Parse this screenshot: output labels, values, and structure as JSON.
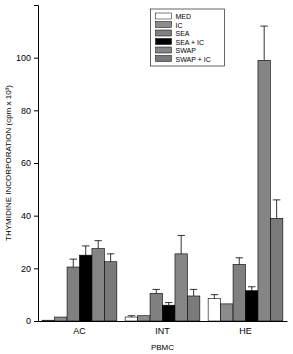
{
  "chart_data": {
    "type": "bar",
    "x_label": "PBMC",
    "y_label": "THYMIDINE INCORPORATION (cpm x 10³)",
    "categories": [
      "AC",
      "INT",
      "HE"
    ],
    "series": [
      {
        "name": "MED",
        "color": "#ffffff",
        "values": [
          0.3,
          1.5,
          8.5
        ],
        "errors": [
          0,
          0.5,
          1.5
        ]
      },
      {
        "name": "IC",
        "color": "#8c8c8c",
        "values": [
          1.5,
          2,
          6.5
        ],
        "errors": [
          0,
          0,
          0
        ]
      },
      {
        "name": "SEA",
        "color": "#808080",
        "values": [
          20.5,
          10.5,
          21.5
        ],
        "errors": [
          3,
          1.5,
          2.5
        ]
      },
      {
        "name": "SEA + IC",
        "color": "#000000",
        "values": [
          25,
          6,
          11.5
        ],
        "errors": [
          3.5,
          1,
          1.5
        ]
      },
      {
        "name": "SWAP",
        "color": "#858585",
        "values": [
          27.5,
          25.5,
          99
        ],
        "errors": [
          3,
          7,
          13
        ]
      },
      {
        "name": "SWAP + IC",
        "color": "#7a7a7a",
        "values": [
          22.5,
          9.5,
          39
        ],
        "errors": [
          3,
          2.5,
          7
        ]
      }
    ],
    "ylim": [
      0,
      120
    ],
    "yticks": [
      0,
      20,
      40,
      60,
      80,
      100
    ],
    "legend": "top"
  }
}
